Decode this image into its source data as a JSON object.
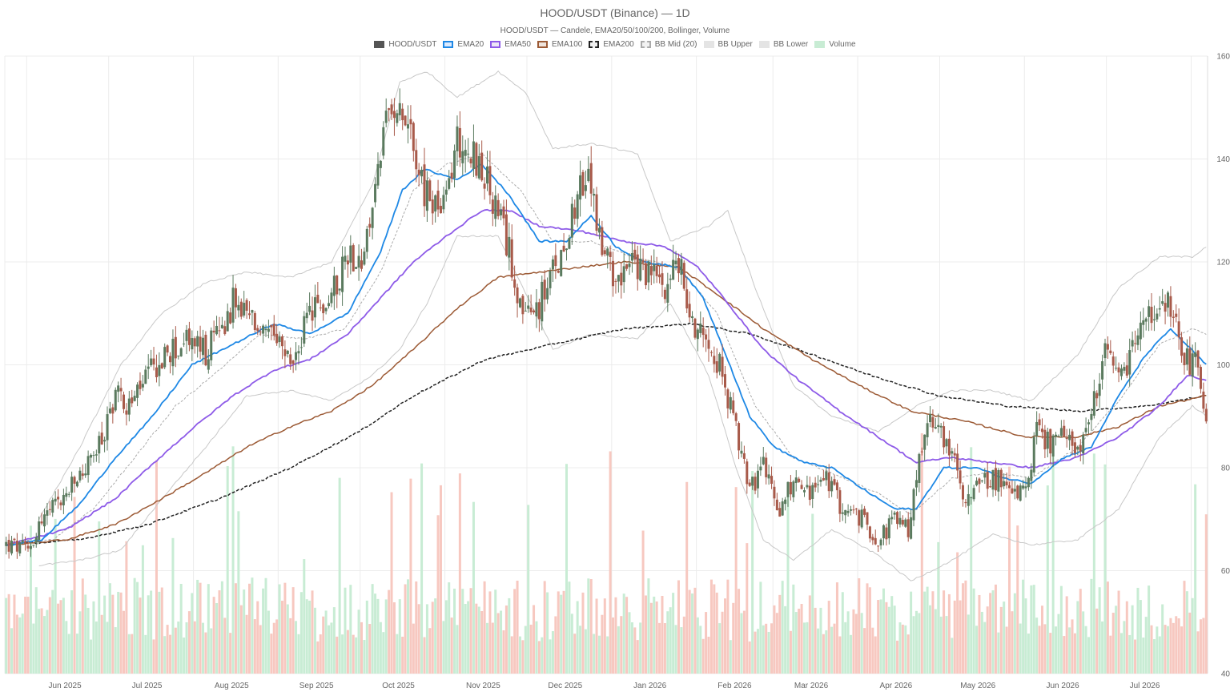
{
  "chart_data": {
    "type": "candlestick",
    "title": "HOOD/USDT (Binance) — 1D",
    "subtitle": "HOOD/USDT — Candele, EMA20/50/100/200, Bollinger, Volume",
    "y_ticks": [
      40,
      60,
      80,
      100,
      120,
      140,
      160
    ],
    "ylim": [
      40,
      160
    ],
    "x_ticks": [
      "Jun 2025",
      "Jul 2025",
      "Aug 2025",
      "Sep 2025",
      "Oct 2025",
      "Nov 2025",
      "Dec 2025",
      "Jan 2026",
      "Feb 2026",
      "Mar 2026",
      "Apr 2026",
      "May 2026",
      "Jun 2026",
      "Jul 2026"
    ],
    "grid": true,
    "legend": [
      {
        "name": "HOOD/USDT",
        "fill": "#555555",
        "stroke": "#555555",
        "dash": false
      },
      {
        "name": "EMA20",
        "fill": "#dbeafe",
        "stroke": "#1e88e5",
        "dash": false
      },
      {
        "name": "EMA50",
        "fill": "#ede7f6",
        "stroke": "#8e5be8",
        "dash": false
      },
      {
        "name": "EMA100",
        "fill": "#efe4dc",
        "stroke": "#9c5a35",
        "dash": false
      },
      {
        "name": "EMA200",
        "fill": "#f0f0f0",
        "stroke": "#222222",
        "dash": true
      },
      {
        "name": "BB Mid (20)",
        "fill": "#f2f2f2",
        "stroke": "#aaaaaa",
        "dash": true
      },
      {
        "name": "BB Upper",
        "fill": "#e4e4e4",
        "stroke": "#e4e4e4",
        "dash": false
      },
      {
        "name": "BB Lower",
        "fill": "#e4e4e4",
        "stroke": "#e4e4e4",
        "dash": false
      },
      {
        "name": "Volume",
        "fill": "#c8ecd4",
        "stroke": "#c8ecd4",
        "dash": false
      }
    ],
    "close_keypoints": [
      [
        "2025-05-24",
        65
      ],
      [
        "2025-06-01",
        64
      ],
      [
        "2025-06-06",
        70
      ],
      [
        "2025-06-14",
        74
      ],
      [
        "2025-06-22",
        80
      ],
      [
        "2025-06-28",
        85
      ],
      [
        "2025-07-03",
        95
      ],
      [
        "2025-07-08",
        92
      ],
      [
        "2025-07-15",
        98
      ],
      [
        "2025-07-22",
        102
      ],
      [
        "2025-07-31",
        105
      ],
      [
        "2025-08-05",
        102
      ],
      [
        "2025-08-15",
        112
      ],
      [
        "2025-08-23",
        108
      ],
      [
        "2025-08-30",
        104
      ],
      [
        "2025-09-06",
        100
      ],
      [
        "2025-09-12",
        110
      ],
      [
        "2025-09-19",
        112
      ],
      [
        "2025-09-26",
        122
      ],
      [
        "2025-10-02",
        120
      ],
      [
        "2025-10-08",
        142
      ],
      [
        "2025-10-14",
        153
      ],
      [
        "2025-10-19",
        146
      ],
      [
        "2025-10-24",
        133
      ],
      [
        "2025-10-31",
        130
      ],
      [
        "2025-11-05",
        144
      ],
      [
        "2025-11-12",
        140
      ],
      [
        "2025-11-16",
        135
      ],
      [
        "2025-11-24",
        122
      ],
      [
        "2025-11-30",
        108
      ],
      [
        "2025-12-05",
        112
      ],
      [
        "2025-12-12",
        120
      ],
      [
        "2025-12-19",
        134
      ],
      [
        "2025-12-24",
        135
      ],
      [
        "2025-12-28",
        122
      ],
      [
        "2025-12-31",
        118
      ],
      [
        "2026-01-08",
        119
      ],
      [
        "2026-01-14",
        118
      ],
      [
        "2026-01-20",
        116
      ],
      [
        "2026-01-25",
        120
      ],
      [
        "2026-01-30",
        108
      ],
      [
        "2026-02-05",
        106
      ],
      [
        "2026-02-10",
        98
      ],
      [
        "2026-02-15",
        87
      ],
      [
        "2026-02-20",
        76
      ],
      [
        "2026-02-25",
        80
      ],
      [
        "2026-03-03",
        72
      ],
      [
        "2026-03-08",
        78
      ],
      [
        "2026-03-14",
        75
      ],
      [
        "2026-03-20",
        78
      ],
      [
        "2026-03-26",
        72
      ],
      [
        "2026-04-02",
        70
      ],
      [
        "2026-04-08",
        66
      ],
      [
        "2026-04-14",
        70
      ],
      [
        "2026-04-19",
        68
      ],
      [
        "2026-04-24",
        85
      ],
      [
        "2026-04-29",
        90
      ],
      [
        "2026-05-04",
        84
      ],
      [
        "2026-05-09",
        75
      ],
      [
        "2026-05-14",
        76
      ],
      [
        "2026-05-19",
        78
      ],
      [
        "2026-05-26",
        77
      ],
      [
        "2026-06-01",
        75
      ],
      [
        "2026-06-05",
        88
      ],
      [
        "2026-06-10",
        84
      ],
      [
        "2026-06-15",
        86
      ],
      [
        "2026-06-20",
        84
      ],
      [
        "2026-06-25",
        90
      ],
      [
        "2026-06-30",
        102
      ],
      [
        "2026-07-05",
        96
      ],
      [
        "2026-07-10",
        103
      ],
      [
        "2026-07-15",
        110
      ],
      [
        "2026-07-19",
        108
      ],
      [
        "2026-07-24",
        112
      ],
      [
        "2026-07-28",
        102
      ],
      [
        "2026-08-02",
        100
      ],
      [
        "2026-08-06",
        88
      ]
    ],
    "ema20_keypoints": [
      [
        "2025-05-24",
        65
      ],
      [
        "2025-06-06",
        66
      ],
      [
        "2025-06-20",
        73
      ],
      [
        "2025-07-03",
        82
      ],
      [
        "2025-07-15",
        89
      ],
      [
        "2025-07-31",
        100
      ],
      [
        "2025-08-15",
        104
      ],
      [
        "2025-08-30",
        108
      ],
      [
        "2025-09-12",
        106
      ],
      [
        "2025-09-26",
        110
      ],
      [
        "2025-10-08",
        122
      ],
      [
        "2025-10-16",
        134
      ],
      [
        "2025-10-24",
        138
      ],
      [
        "2025-11-05",
        136
      ],
      [
        "2025-11-14",
        139
      ],
      [
        "2025-11-24",
        133
      ],
      [
        "2025-12-05",
        124
      ],
      [
        "2025-12-15",
        124
      ],
      [
        "2025-12-24",
        129
      ],
      [
        "2026-01-02",
        123
      ],
      [
        "2026-01-12",
        120
      ],
      [
        "2026-01-25",
        119
      ],
      [
        "2026-02-03",
        113
      ],
      [
        "2026-02-12",
        101
      ],
      [
        "2026-02-20",
        90
      ],
      [
        "2026-03-01",
        84
      ],
      [
        "2026-03-12",
        81
      ],
      [
        "2026-03-22",
        80
      ],
      [
        "2026-04-02",
        76
      ],
      [
        "2026-04-14",
        72
      ],
      [
        "2026-04-22",
        72
      ],
      [
        "2026-05-02",
        80
      ],
      [
        "2026-05-14",
        80
      ],
      [
        "2026-05-24",
        78
      ],
      [
        "2026-06-03",
        77
      ],
      [
        "2026-06-15",
        82
      ],
      [
        "2026-06-25",
        84
      ],
      [
        "2026-07-05",
        94
      ],
      [
        "2026-07-15",
        102
      ],
      [
        "2026-07-24",
        107
      ],
      [
        "2026-08-06",
        100
      ]
    ],
    "ema50_keypoints": [
      [
        "2025-05-24",
        65
      ],
      [
        "2025-06-15",
        68
      ],
      [
        "2025-07-03",
        74
      ],
      [
        "2025-07-15",
        80
      ],
      [
        "2025-08-01",
        88
      ],
      [
        "2025-08-15",
        94
      ],
      [
        "2025-08-30",
        99
      ],
      [
        "2025-09-12",
        101
      ],
      [
        "2025-09-26",
        106
      ],
      [
        "2025-10-08",
        113
      ],
      [
        "2025-10-20",
        120
      ],
      [
        "2025-11-01",
        125
      ],
      [
        "2025-11-14",
        130
      ],
      [
        "2025-11-24",
        130
      ],
      [
        "2025-12-05",
        127
      ],
      [
        "2025-12-20",
        126
      ],
      [
        "2026-01-05",
        124
      ],
      [
        "2026-01-20",
        123
      ],
      [
        "2026-02-01",
        119
      ],
      [
        "2026-02-12",
        112
      ],
      [
        "2026-02-25",
        103
      ],
      [
        "2026-03-10",
        97
      ],
      [
        "2026-03-25",
        91
      ],
      [
        "2026-04-08",
        86
      ],
      [
        "2026-04-22",
        81
      ],
      [
        "2026-05-04",
        82
      ],
      [
        "2026-05-20",
        81
      ],
      [
        "2026-06-03",
        80
      ],
      [
        "2026-06-20",
        82
      ],
      [
        "2026-07-05",
        86
      ],
      [
        "2026-07-20",
        92
      ],
      [
        "2026-07-30",
        98
      ],
      [
        "2026-08-06",
        97
      ]
    ],
    "ema100_keypoints": [
      [
        "2025-05-24",
        65
      ],
      [
        "2025-06-15",
        66
      ],
      [
        "2025-07-03",
        69
      ],
      [
        "2025-07-20",
        74
      ],
      [
        "2025-08-05",
        79
      ],
      [
        "2025-08-20",
        84
      ],
      [
        "2025-09-05",
        88
      ],
      [
        "2025-09-20",
        91
      ],
      [
        "2025-10-05",
        96
      ],
      [
        "2025-10-20",
        103
      ],
      [
        "2025-11-05",
        111
      ],
      [
        "2025-11-20",
        117
      ],
      [
        "2025-12-05",
        118
      ],
      [
        "2025-12-20",
        119
      ],
      [
        "2026-01-05",
        120
      ],
      [
        "2026-01-25",
        119
      ],
      [
        "2026-02-10",
        113
      ],
      [
        "2026-02-25",
        107
      ],
      [
        "2026-03-15",
        101
      ],
      [
        "2026-04-01",
        96
      ],
      [
        "2026-04-20",
        91
      ],
      [
        "2026-05-10",
        89
      ],
      [
        "2026-06-01",
        86
      ],
      [
        "2026-06-20",
        86
      ],
      [
        "2026-07-05",
        88
      ],
      [
        "2026-07-20",
        92
      ],
      [
        "2026-08-06",
        94
      ]
    ],
    "ema200_keypoints": [
      [
        "2025-05-24",
        65
      ],
      [
        "2025-06-20",
        66
      ],
      [
        "2025-07-15",
        69
      ],
      [
        "2025-08-10",
        74
      ],
      [
        "2025-09-05",
        80
      ],
      [
        "2025-09-30",
        87
      ],
      [
        "2025-10-20",
        94
      ],
      [
        "2025-11-15",
        101
      ],
      [
        "2025-12-10",
        104
      ],
      [
        "2026-01-05",
        107
      ],
      [
        "2026-01-30",
        108
      ],
      [
        "2026-02-20",
        106
      ],
      [
        "2026-03-15",
        102
      ],
      [
        "2026-04-05",
        98
      ],
      [
        "2026-04-30",
        94
      ],
      [
        "2026-05-25",
        92
      ],
      [
        "2026-06-20",
        91
      ],
      [
        "2026-07-15",
        92
      ],
      [
        "2026-08-06",
        94
      ]
    ],
    "bb_mid_keypoints": [
      [
        "2025-05-24",
        65
      ],
      [
        "2025-06-10",
        66
      ],
      [
        "2025-06-25",
        72
      ],
      [
        "2025-07-10",
        82
      ],
      [
        "2025-07-25",
        92
      ],
      [
        "2025-08-10",
        99
      ],
      [
        "2025-08-25",
        106
      ],
      [
        "2025-09-10",
        105
      ],
      [
        "2025-09-25",
        107
      ],
      [
        "2025-10-08",
        118
      ],
      [
        "2025-10-20",
        134
      ],
      [
        "2025-11-01",
        139
      ],
      [
        "2025-11-14",
        141
      ],
      [
        "2025-11-28",
        134
      ],
      [
        "2025-12-10",
        124
      ],
      [
        "2025-12-24",
        124
      ],
      [
        "2026-01-08",
        121
      ],
      [
        "2026-01-25",
        119
      ],
      [
        "2026-02-08",
        110
      ],
      [
        "2026-02-22",
        92
      ],
      [
        "2026-03-08",
        82
      ],
      [
        "2026-03-22",
        79
      ],
      [
        "2026-04-08",
        75
      ],
      [
        "2026-04-20",
        71
      ],
      [
        "2026-05-05",
        78
      ],
      [
        "2026-05-20",
        79
      ],
      [
        "2026-06-03",
        78
      ],
      [
        "2026-06-20",
        84
      ],
      [
        "2026-07-05",
        93
      ],
      [
        "2026-07-20",
        104
      ],
      [
        "2026-08-01",
        107
      ],
      [
        "2026-08-06",
        106
      ]
    ],
    "bb_upper_keypoints": [
      [
        "2025-06-05",
        70
      ],
      [
        "2025-06-20",
        84
      ],
      [
        "2025-07-05",
        100
      ],
      [
        "2025-07-20",
        110
      ],
      [
        "2025-08-05",
        116
      ],
      [
        "2025-08-20",
        118
      ],
      [
        "2025-09-05",
        117
      ],
      [
        "2025-09-20",
        120
      ],
      [
        "2025-10-05",
        135
      ],
      [
        "2025-10-15",
        155
      ],
      [
        "2025-10-25",
        157
      ],
      [
        "2025-11-05",
        152
      ],
      [
        "2025-11-20",
        157
      ],
      [
        "2025-11-30",
        153
      ],
      [
        "2025-12-10",
        142
      ],
      [
        "2025-12-24",
        143
      ],
      [
        "2026-01-10",
        141
      ],
      [
        "2026-01-22",
        124
      ],
      [
        "2026-02-05",
        127
      ],
      [
        "2026-02-12",
        130
      ],
      [
        "2026-02-22",
        115
      ],
      [
        "2026-03-08",
        96
      ],
      [
        "2026-03-22",
        90
      ],
      [
        "2026-04-08",
        87
      ],
      [
        "2026-04-22",
        92
      ],
      [
        "2026-05-05",
        95
      ],
      [
        "2026-05-20",
        95
      ],
      [
        "2026-06-03",
        93
      ],
      [
        "2026-06-20",
        102
      ],
      [
        "2026-07-05",
        115
      ],
      [
        "2026-07-20",
        121
      ],
      [
        "2026-08-01",
        121
      ],
      [
        "2026-08-06",
        123
      ]
    ],
    "bb_lower_keypoints": [
      [
        "2025-06-05",
        61
      ],
      [
        "2025-06-20",
        62
      ],
      [
        "2025-07-05",
        64
      ],
      [
        "2025-07-20",
        74
      ],
      [
        "2025-08-05",
        84
      ],
      [
        "2025-08-20",
        94
      ],
      [
        "2025-09-05",
        95
      ],
      [
        "2025-09-20",
        93
      ],
      [
        "2025-10-05",
        98
      ],
      [
        "2025-10-15",
        103
      ],
      [
        "2025-10-25",
        112
      ],
      [
        "2025-11-05",
        125
      ],
      [
        "2025-11-20",
        125
      ],
      [
        "2025-11-30",
        114
      ],
      [
        "2025-12-10",
        103
      ],
      [
        "2025-12-24",
        106
      ],
      [
        "2026-01-10",
        105
      ],
      [
        "2026-01-22",
        112
      ],
      [
        "2026-02-05",
        98
      ],
      [
        "2026-02-15",
        80
      ],
      [
        "2026-02-25",
        66
      ],
      [
        "2026-03-08",
        62
      ],
      [
        "2026-03-22",
        68
      ],
      [
        "2026-04-08",
        63
      ],
      [
        "2026-04-20",
        58
      ],
      [
        "2026-05-05",
        62
      ],
      [
        "2026-05-20",
        67
      ],
      [
        "2026-06-03",
        65
      ],
      [
        "2026-06-20",
        66
      ],
      [
        "2026-07-05",
        72
      ],
      [
        "2026-07-20",
        86
      ],
      [
        "2026-08-01",
        92
      ],
      [
        "2026-08-06",
        90
      ]
    ]
  },
  "colors": {
    "up": "#5a7a5e",
    "down": "#a85a4a",
    "vol_up": "#c8ecd4",
    "vol_down": "#f7c8c0",
    "ema20": "#1e88e5",
    "ema50": "#8e5be8",
    "ema100": "#9c5a35",
    "ema200": "#222222",
    "bb_mid": "#aaaaaa",
    "bb_band": "#c8c8c8"
  }
}
